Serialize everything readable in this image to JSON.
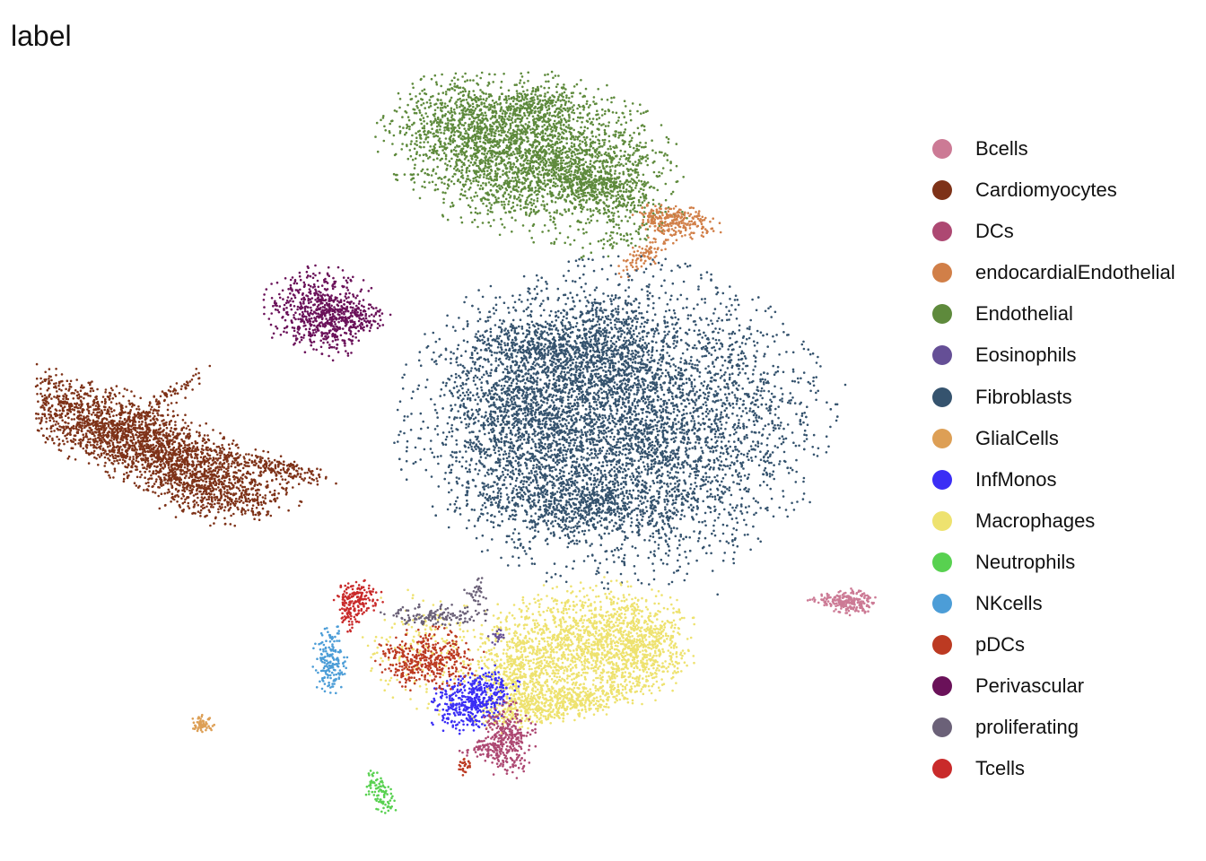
{
  "chart_data": {
    "type": "scatter",
    "title": "label",
    "xlabel": "",
    "ylabel": "",
    "axes_visible": false,
    "grid": false,
    "legend_position": "right",
    "legend_title": "",
    "series": [
      {
        "name": "Bcells",
        "color": "#CC7A95"
      },
      {
        "name": "Cardiomyocytes",
        "color": "#7E3218"
      },
      {
        "name": "DCs",
        "color": "#AD4872"
      },
      {
        "name": "endocardialEndothelial",
        "color": "#D17F48"
      },
      {
        "name": "Endothelial",
        "color": "#5E8A3C"
      },
      {
        "name": "Eosinophils",
        "color": "#654F96"
      },
      {
        "name": "Fibroblasts",
        "color": "#35536E"
      },
      {
        "name": "GlialCells",
        "color": "#DD9F55"
      },
      {
        "name": "InfMonos",
        "color": "#3B2EF5"
      },
      {
        "name": "Macrophages",
        "color": "#EEE26F"
      },
      {
        "name": "Neutrophils",
        "color": "#58D150"
      },
      {
        "name": "NKcells",
        "color": "#4C9DD7"
      },
      {
        "name": "pDCs",
        "color": "#BC3A22"
      },
      {
        "name": "Perivascular",
        "color": "#6A1159"
      },
      {
        "name": "proliferating",
        "color": "#6B6178"
      },
      {
        "name": "Tcells",
        "color": "#C92A2A"
      }
    ]
  }
}
